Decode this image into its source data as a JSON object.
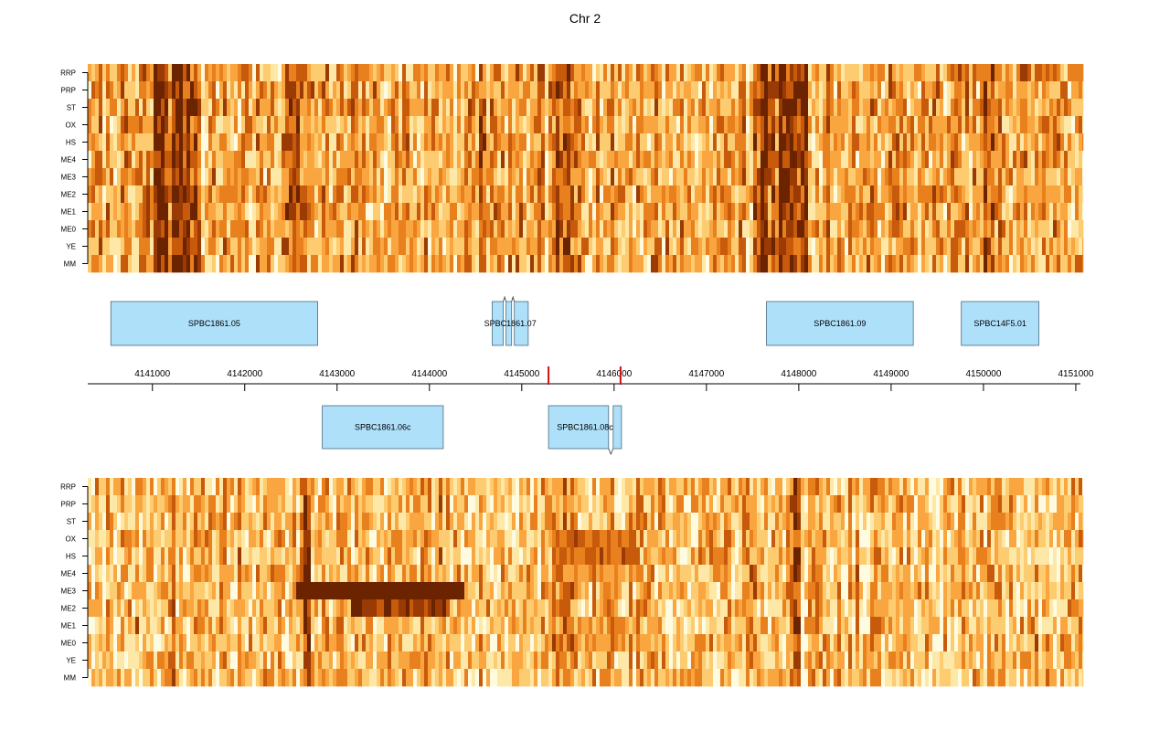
{
  "chart_data": {
    "type": "heatmap",
    "title": "Chr 2",
    "xlim": [
      4140300,
      4151050
    ],
    "x_ticks": [
      4141000,
      4142000,
      4143000,
      4144000,
      4145000,
      4146000,
      4147000,
      4148000,
      4149000,
      4150000,
      4151000
    ],
    "x_tick_labels": [
      "4141000",
      "4142000",
      "4143000",
      "4144000",
      "4145000",
      "4146000",
      "4147000",
      "4148000",
      "4149000",
      "4150000",
      "4151000"
    ],
    "row_labels": [
      "RRP",
      "PRP",
      "ST",
      "OX",
      "HS",
      "ME4",
      "ME3",
      "ME2",
      "ME1",
      "ME0",
      "YE",
      "MM"
    ],
    "color_scale": [
      "#FFFBE0",
      "#FEE8A8",
      "#FDCB70",
      "#F9A640",
      "#E9801E",
      "#C85A0C",
      "#9A3A04",
      "#6B2300"
    ],
    "markers": [
      4145290,
      4146070
    ],
    "marker_color": "#D01010",
    "genes_forward": [
      {
        "name": "SPBC1861.05",
        "exons": [
          [
            4140550,
            4142790
          ]
        ]
      },
      {
        "name": "SPBC1861.07",
        "exons": [
          [
            4144680,
            4144800
          ],
          [
            4144830,
            4144890
          ],
          [
            4144920,
            4145070
          ]
        ]
      },
      {
        "name": "SPBC1861.09",
        "exons": [
          [
            4147650,
            4149240
          ]
        ]
      },
      {
        "name": "SPBC14F5.01",
        "exons": [
          [
            4149760,
            4150600
          ]
        ]
      }
    ],
    "genes_reverse": [
      {
        "name": "SPBC1861.06c",
        "exons": [
          [
            4142840,
            4144150
          ]
        ]
      },
      {
        "name": "SPBC1861.08c",
        "exons": [
          [
            4145290,
            4145940
          ],
          [
            4145990,
            4146080
          ]
        ]
      }
    ],
    "panels": [
      {
        "name": "forward-strand-expression",
        "seed": 7,
        "base_level": 0.42,
        "dark_bands": [
          [
            4141000,
            4141500,
            0.35
          ],
          [
            4142400,
            4142650,
            0.25
          ],
          [
            4144500,
            4144650,
            0.15
          ],
          [
            4145300,
            4145700,
            0.15
          ],
          [
            4147500,
            4148100,
            0.4
          ],
          [
            4150000,
            4150100,
            0.3
          ]
        ],
        "dark_blocks": []
      },
      {
        "name": "reverse-strand-expression",
        "seed": 19,
        "base_level": 0.3,
        "dark_bands": [
          [
            4142600,
            4142700,
            0.45
          ],
          [
            4141150,
            4141250,
            0.2
          ],
          [
            4147400,
            4147500,
            0.35
          ],
          [
            4147900,
            4148000,
            0.35
          ],
          [
            4145300,
            4145600,
            0.12
          ]
        ],
        "dark_blocks": [
          {
            "rows": [
              "ME3"
            ],
            "range": [
              4142520,
              4144350
            ],
            "level": 1.0
          },
          {
            "rows": [
              "ME2"
            ],
            "range": [
              4143130,
              4144200
            ],
            "level": 0.95
          },
          {
            "rows": [
              "OX",
              "HS"
            ],
            "range": [
              4145300,
              4146200
            ],
            "level": 0.78
          },
          {
            "rows": [
              "ME4",
              "ME1",
              "ME0"
            ],
            "range": [
              4145300,
              4146200
            ],
            "level": 0.55
          }
        ]
      }
    ]
  }
}
